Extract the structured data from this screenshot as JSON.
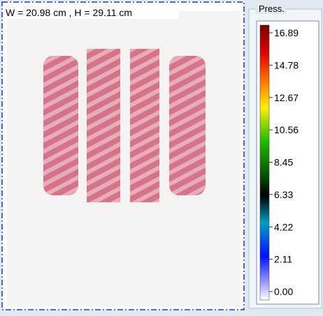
{
  "image": {
    "dimensions": "W = 20.98 cm , H = 29.11 cm"
  },
  "legend": {
    "title": "Press.",
    "labels": [
      "16.89",
      "14.78",
      "12.67",
      "10.56",
      "8.45",
      "6.33",
      "4.22",
      "2.11",
      "0.00"
    ]
  }
}
